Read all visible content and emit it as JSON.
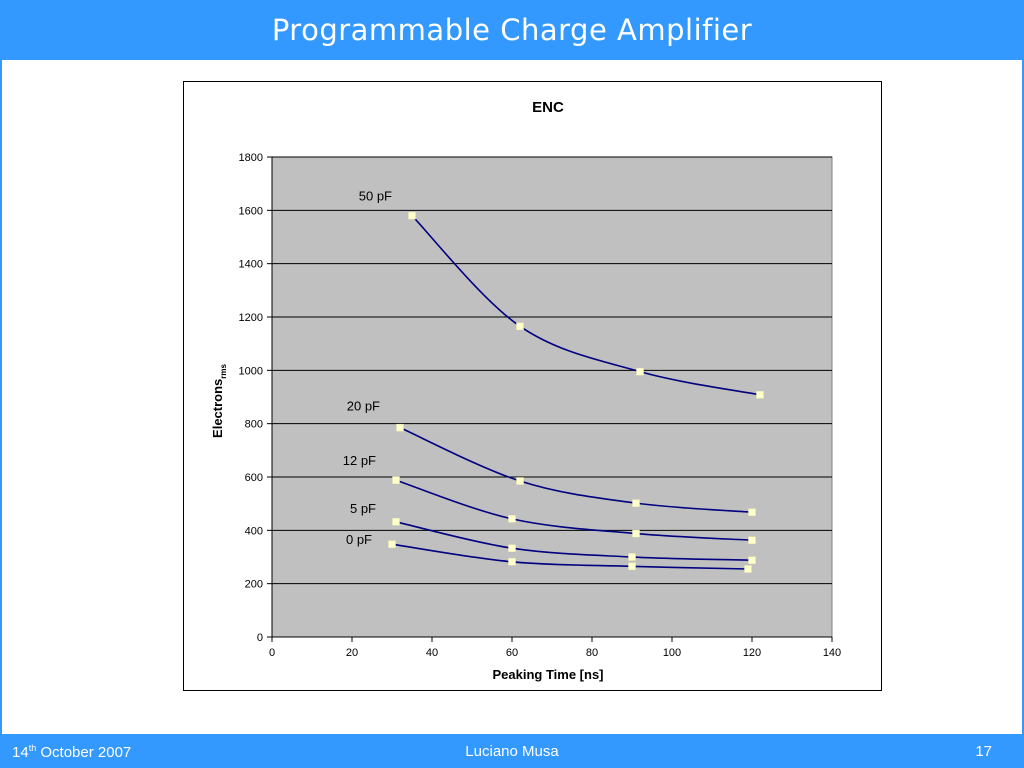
{
  "slide": {
    "title": "Programmable Charge Amplifier",
    "accent_color": "#3399ff",
    "footer": {
      "date_day": "14",
      "date_suffix": "th",
      "date_rest": " October 2007",
      "author": "Luciano Musa",
      "page": "17"
    }
  },
  "chart_data": {
    "type": "line",
    "title": "ENC",
    "xlabel": "Peaking Time [ns]",
    "ylabel_main": "Electrons",
    "ylabel_sub": "rms",
    "xlim": [
      0,
      140
    ],
    "ylim": [
      0,
      1800
    ],
    "xticks": [
      0,
      20,
      40,
      60,
      80,
      100,
      120,
      140
    ],
    "yticks": [
      0,
      200,
      400,
      600,
      800,
      1000,
      1200,
      1400,
      1600,
      1800
    ],
    "grid": "horizontal",
    "plot_background": "#c0c0c0",
    "line_color": "#000080",
    "marker_color": "#ffffcc",
    "series": [
      {
        "name": "50 pF",
        "x": [
          35,
          62,
          92,
          122
        ],
        "y": [
          1580,
          1165,
          995,
          908
        ]
      },
      {
        "name": "20 pF",
        "x": [
          32,
          62,
          91,
          120
        ],
        "y": [
          785,
          585,
          502,
          468
        ]
      },
      {
        "name": "12 pF",
        "x": [
          31,
          60,
          91,
          120
        ],
        "y": [
          588,
          443,
          388,
          363
        ]
      },
      {
        "name": "5 pF",
        "x": [
          31,
          60,
          90,
          120
        ],
        "y": [
          432,
          333,
          300,
          288
        ]
      },
      {
        "name": "0 pF",
        "x": [
          30,
          60,
          90,
          119
        ],
        "y": [
          348,
          282,
          265,
          255
        ]
      }
    ]
  }
}
